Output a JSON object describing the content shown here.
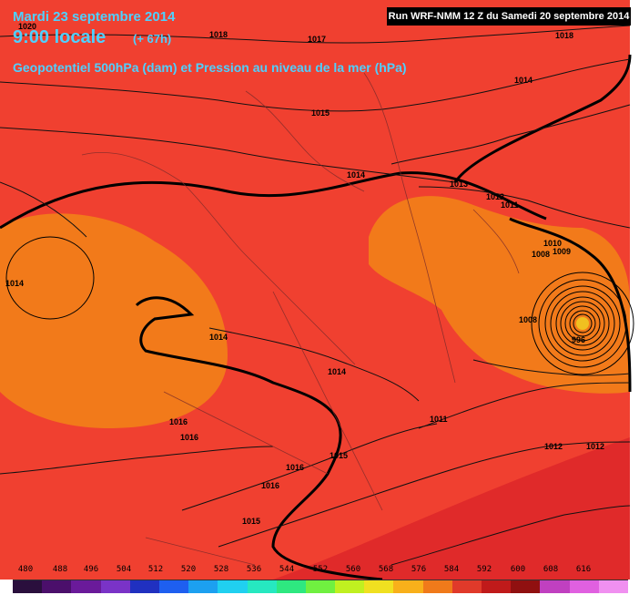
{
  "header": {
    "date": "Mardi 23 septembre 2014",
    "time": "9:00 locale",
    "lead": "(+ 67h)",
    "field": "Geopotentiel 500hPa (dam) et Pression au niveau de la mer (hPa)",
    "run": "Run WRF-NMM 12 Z du Samedi 20 septembre 2014"
  },
  "isobar_labels": [
    "1018",
    "1017",
    "1018",
    "1014",
    "1015",
    "1014",
    "1013",
    "1012",
    "1011",
    "1010",
    "1009",
    "1008",
    "1014",
    "1014",
    "1014",
    "1016",
    "1016",
    "1016",
    "1015",
    "1016",
    "1015",
    "1011",
    "1012",
    "1012",
    "1008",
    "996",
    "1020"
  ],
  "legend": {
    "values": [
      "480",
      "488",
      "496",
      "504",
      "512",
      "520",
      "528",
      "536",
      "544",
      "552",
      "560",
      "568",
      "576",
      "584",
      "592",
      "600",
      "608",
      "616"
    ],
    "colors": [
      "#2a0f3d",
      "#4b0f6b",
      "#6a1a9a",
      "#7a33c7",
      "#2030c0",
      "#1e5ff0",
      "#1ca0f0",
      "#20d0f0",
      "#26e8c0",
      "#2ee880",
      "#70f040",
      "#c0f020",
      "#f0e020",
      "#f8b01a",
      "#f07a1a",
      "#e03a2a",
      "#c01a1a",
      "#901010",
      "#c040c0",
      "#e060e0",
      "#f090f0"
    ]
  },
  "colors": {
    "background_field": "#f04030",
    "warm_field": "#f27a1a",
    "deep_field": "#e02a2a",
    "title_text": "#4fd0ff"
  }
}
